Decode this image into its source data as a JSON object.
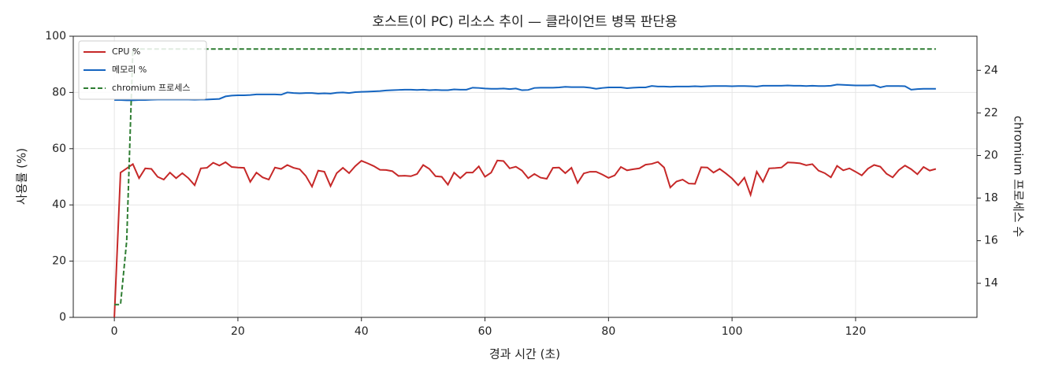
{
  "chart_data": {
    "type": "line",
    "title": "호스트(이 PC) 리소스 추이 — 클라이언트 병목 판단용",
    "x_label": "경과 시간 (초)",
    "y_label": "사용률 (%)",
    "y2_label": "chromium 프로세스 수",
    "xlim": [
      -6.65,
      139.65
    ],
    "ylim": [
      0,
      100
    ],
    "y2lim": [
      12.4,
      25.6
    ],
    "xticks": [
      0,
      20,
      40,
      60,
      80,
      100,
      120
    ],
    "yticks": [
      0,
      20,
      40,
      60,
      80,
      100
    ],
    "y2ticks": [
      14,
      16,
      18,
      20,
      22,
      24
    ],
    "grid": true,
    "legend": "upper left",
    "x": [
      0,
      1,
      2,
      3,
      4,
      5,
      6,
      7,
      8,
      9,
      10,
      11,
      12,
      13,
      14,
      15,
      16,
      17,
      18,
      19,
      20,
      21,
      22,
      23,
      24,
      25,
      26,
      27,
      28,
      29,
      30,
      31,
      32,
      33,
      34,
      35,
      36,
      37,
      38,
      39,
      40,
      41,
      42,
      43,
      44,
      45,
      46,
      47,
      48,
      49,
      50,
      51,
      52,
      53,
      54,
      55,
      56,
      57,
      58,
      59,
      60,
      61,
      62,
      63,
      64,
      65,
      66,
      67,
      68,
      69,
      70,
      71,
      72,
      73,
      74,
      75,
      76,
      77,
      78,
      79,
      80,
      81,
      82,
      83,
      84,
      85,
      86,
      87,
      88,
      89,
      90,
      91,
      92,
      93,
      94,
      95,
      96,
      97,
      98,
      99,
      100,
      101,
      102,
      103,
      104,
      105,
      106,
      107,
      108,
      109,
      110,
      111,
      112,
      113,
      114,
      115,
      116,
      117,
      118,
      119,
      120,
      121,
      122,
      123,
      124,
      125,
      126,
      127,
      128,
      129,
      130,
      131,
      132,
      133
    ],
    "series": [
      {
        "name": "CPU %",
        "color": "#c62828",
        "dash": false,
        "values": [
          0,
          51.5,
          53,
          54.5,
          49.5,
          53,
          52.8,
          50,
          49,
          51.5,
          49.5,
          51.3,
          49.5,
          47,
          53,
          53.2,
          55,
          54,
          55.2,
          53.5,
          53.3,
          53.2,
          48.2,
          51.5,
          49.8,
          49,
          53.3,
          52.8,
          54.2,
          53.2,
          52.7,
          50.3,
          46.5,
          52.2,
          51.8,
          46.7,
          51.3,
          53.2,
          51.3,
          53.8,
          55.7,
          54.8,
          53.8,
          52.5,
          52.4,
          52,
          50.3,
          50.4,
          50.2,
          51,
          54.2,
          52.8,
          50.2,
          50,
          47.2,
          51.5,
          49.5,
          51.5,
          51.5,
          53.7,
          50,
          51.5,
          55.8,
          55.6,
          53,
          53.6,
          52.2,
          49.5,
          51,
          49.7,
          49.3,
          53.2,
          53.3,
          51.3,
          53.2,
          47.8,
          51.2,
          51.8,
          51.8,
          50.8,
          49.6,
          50.5,
          53.5,
          52.3,
          52.7,
          53,
          54.3,
          54.6,
          55.3,
          53.3,
          46.2,
          48.3,
          49,
          47.6,
          47.5,
          53.4,
          53.3,
          51.5,
          52.8,
          51.2,
          49.4,
          47,
          49.7,
          43.6,
          51.8,
          48.2,
          53,
          53.1,
          53.3,
          55.1,
          55,
          54.8,
          54.1,
          54.5,
          52.2,
          51.3,
          49.8,
          53.9,
          52.3,
          53,
          51.8,
          50.5,
          52.9,
          54.2,
          53.6,
          51.1,
          49.8,
          52.4,
          54,
          52.7,
          50.9,
          53.5,
          52.2,
          52.8
        ]
      },
      {
        "name": "메모리 %",
        "color": "#1565c0",
        "dash": false,
        "values": [
          77.3,
          77.3,
          77.2,
          77.2,
          77.3,
          77.3,
          77.4,
          77.5,
          77.5,
          77.5,
          77.5,
          77.5,
          77.5,
          77.4,
          77.5,
          77.5,
          77.6,
          77.7,
          78.6,
          78.9,
          79,
          79,
          79.1,
          79.3,
          79.3,
          79.3,
          79.3,
          79.2,
          80,
          79.8,
          79.7,
          79.8,
          79.8,
          79.6,
          79.7,
          79.6,
          79.9,
          80,
          79.8,
          80.1,
          80.2,
          80.3,
          80.4,
          80.5,
          80.7,
          80.8,
          80.9,
          81,
          81,
          80.9,
          81,
          80.8,
          80.9,
          80.8,
          80.8,
          81.1,
          81,
          81,
          81.7,
          81.6,
          81.4,
          81.3,
          81.3,
          81.4,
          81.2,
          81.4,
          80.8,
          80.9,
          81.6,
          81.7,
          81.7,
          81.7,
          81.8,
          82,
          81.9,
          81.9,
          81.9,
          81.7,
          81.3,
          81.6,
          81.8,
          81.8,
          81.8,
          81.5,
          81.7,
          81.8,
          81.8,
          82.3,
          82.1,
          82.1,
          82,
          82.1,
          82.1,
          82.1,
          82.2,
          82.1,
          82.2,
          82.3,
          82.3,
          82.3,
          82.2,
          82.3,
          82.3,
          82.2,
          82.1,
          82.4,
          82.4,
          82.4,
          82.4,
          82.5,
          82.4,
          82.4,
          82.3,
          82.4,
          82.3,
          82.3,
          82.4,
          82.8,
          82.7,
          82.6,
          82.5,
          82.5,
          82.5,
          82.6,
          81.8,
          82.3,
          82.3,
          82.3,
          82.2,
          81,
          81.2,
          81.3,
          81.3,
          81.3
        ]
      },
      {
        "name": "chromium 프로세스",
        "color": "#2e7d32",
        "dash": true,
        "axis": "y2",
        "values": [
          13,
          13,
          16,
          25,
          25,
          25,
          25,
          25,
          25,
          25,
          25,
          25,
          25,
          25,
          25,
          25,
          25,
          25,
          25,
          25,
          25,
          25,
          25,
          25,
          25,
          25,
          25,
          25,
          25,
          25,
          25,
          25,
          25,
          25,
          25,
          25,
          25,
          25,
          25,
          25,
          25,
          25,
          25,
          25,
          25,
          25,
          25,
          25,
          25,
          25,
          25,
          25,
          25,
          25,
          25,
          25,
          25,
          25,
          25,
          25,
          25,
          25,
          25,
          25,
          25,
          25,
          25,
          25,
          25,
          25,
          25,
          25,
          25,
          25,
          25,
          25,
          25,
          25,
          25,
          25,
          25,
          25,
          25,
          25,
          25,
          25,
          25,
          25,
          25,
          25,
          25,
          25,
          25,
          25,
          25,
          25,
          25,
          25,
          25,
          25,
          25,
          25,
          25,
          25,
          25,
          25,
          25,
          25,
          25,
          25,
          25,
          25,
          25,
          25,
          25,
          25,
          25,
          25,
          25,
          25,
          25,
          25,
          25,
          25,
          25,
          25,
          25,
          25,
          25,
          25,
          25,
          25,
          25,
          25
        ]
      }
    ]
  }
}
